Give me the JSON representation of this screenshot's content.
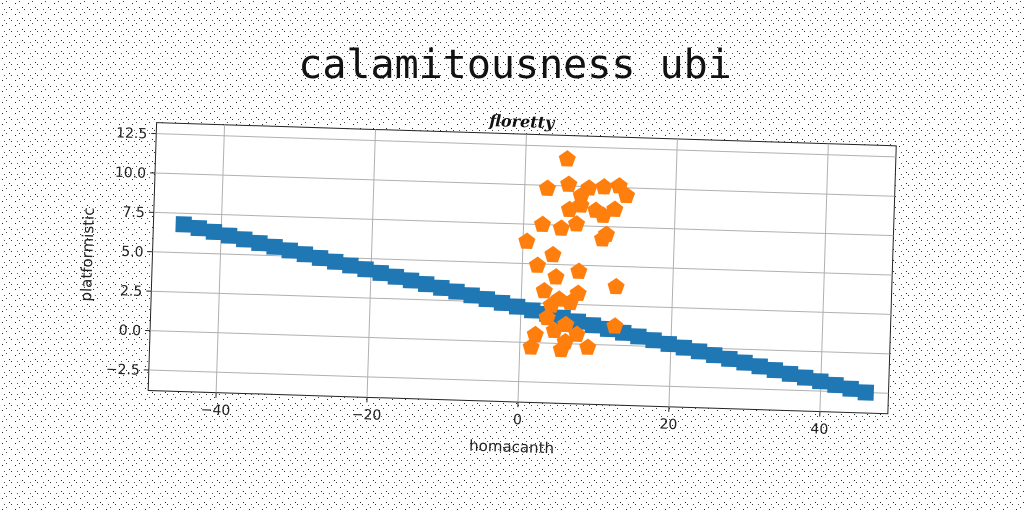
{
  "chart_data": {
    "type": "scatter",
    "suptitle": "calamitousness ubi",
    "title": "floretty",
    "xlabel": "homacanth",
    "ylabel": "platformistic",
    "xlim": [
      -49,
      49
    ],
    "ylim": [
      -3.8,
      13.2
    ],
    "xticks": [
      -40,
      -20,
      0,
      20,
      40
    ],
    "yticks": [
      -2.5,
      0.0,
      2.5,
      5.0,
      7.5,
      10.0,
      12.5
    ],
    "xtick_labels": [
      "−40",
      "−20",
      "0",
      "20",
      "40"
    ],
    "ytick_labels": [
      "−2.5",
      "0.0",
      "2.5",
      "5.0",
      "7.5",
      "10.0",
      "12.5"
    ],
    "grid": true,
    "series": [
      {
        "color": "#1f77b4",
        "marker": "square",
        "line": {
          "x_start": -45,
          "x_end": 46,
          "y_start": 6.8,
          "y_end": -2.5,
          "count": 46
        }
      },
      {
        "color": "#ff7f0e",
        "marker": "pentagon",
        "points": [
          [
            5.5,
            11.7
          ],
          [
            3.0,
            9.8
          ],
          [
            5.8,
            10.1
          ],
          [
            7.5,
            9.4
          ],
          [
            8.5,
            9.9
          ],
          [
            10.5,
            10.0
          ],
          [
            12.5,
            10.1
          ],
          [
            13.5,
            9.5
          ],
          [
            6.0,
            8.5
          ],
          [
            7.5,
            8.8
          ],
          [
            9.5,
            8.5
          ],
          [
            10.5,
            8.2
          ],
          [
            12.0,
            8.6
          ],
          [
            2.5,
            7.5
          ],
          [
            5.0,
            7.3
          ],
          [
            7.0,
            7.6
          ],
          [
            11.0,
            7.0
          ],
          [
            0.5,
            6.4
          ],
          [
            4.0,
            5.6
          ],
          [
            10.5,
            6.7
          ],
          [
            2.0,
            4.9
          ],
          [
            7.5,
            4.6
          ],
          [
            4.5,
            4.2
          ],
          [
            12.5,
            3.7
          ],
          [
            3.0,
            3.3
          ],
          [
            5.0,
            2.8
          ],
          [
            7.5,
            3.2
          ],
          [
            4.0,
            2.4
          ],
          [
            6.5,
            2.6
          ],
          [
            3.5,
            1.6
          ],
          [
            6.0,
            1.2
          ],
          [
            12.5,
            1.2
          ],
          [
            2.0,
            0.5
          ],
          [
            4.5,
            0.8
          ],
          [
            6.0,
            0.1
          ],
          [
            7.5,
            0.6
          ],
          [
            1.5,
            -0.3
          ],
          [
            5.5,
            -0.4
          ],
          [
            9.0,
            -0.2
          ]
        ]
      }
    ]
  }
}
